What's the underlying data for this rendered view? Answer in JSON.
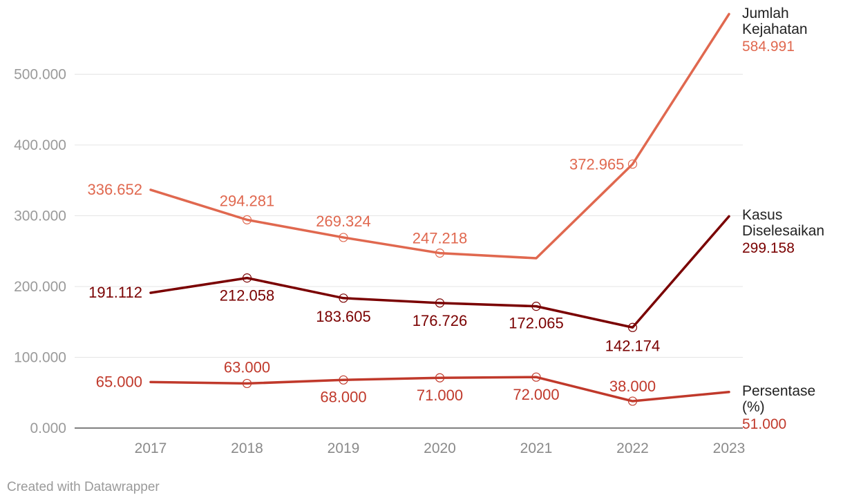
{
  "chart_data": {
    "type": "line",
    "x": [
      "2017",
      "2018",
      "2019",
      "2020",
      "2021",
      "2022",
      "2023"
    ],
    "ylim": [
      0,
      600000
    ],
    "yticks": [
      {
        "value": 0,
        "label": "0.000"
      },
      {
        "value": 100000,
        "label": "100.000"
      },
      {
        "value": 200000,
        "label": "200.000"
      },
      {
        "value": 300000,
        "label": "300.000"
      },
      {
        "value": 400000,
        "label": "400.000"
      },
      {
        "value": 500000,
        "label": "500.000"
      }
    ],
    "grid": true,
    "series": [
      {
        "name": "Jumlah Kejahatan",
        "name_lines": [
          "Jumlah",
          "Kejahatan"
        ],
        "color": "#e0684f",
        "values": [
          336652,
          294281,
          269324,
          247218,
          240000,
          372965,
          584991
        ],
        "labels": [
          "336.652",
          "294.281",
          "269.324",
          "247.218",
          "",
          "372.965",
          "584.991"
        ]
      },
      {
        "name": "Kasus Diselesaikan",
        "name_lines": [
          "Kasus",
          "Diselesaikan"
        ],
        "color": "#7a0000",
        "values": [
          191112,
          212058,
          183605,
          176726,
          172065,
          142174,
          299158
        ],
        "labels": [
          "191.112",
          "212.058",
          "183.605",
          "176.726",
          "172.065",
          "142.174",
          "299.158"
        ]
      },
      {
        "name": "Persentase (%)",
        "name_lines": [
          "Persentase",
          "(%)"
        ],
        "color": "#c0392b",
        "values": [
          65000,
          63000,
          68000,
          71000,
          72000,
          38000,
          51000
        ],
        "labels": [
          "65.000",
          "63.000",
          "68.000",
          "71.000",
          "72.000",
          "38.000",
          "51.000"
        ]
      }
    ]
  },
  "footer": "Created with Datawrapper"
}
